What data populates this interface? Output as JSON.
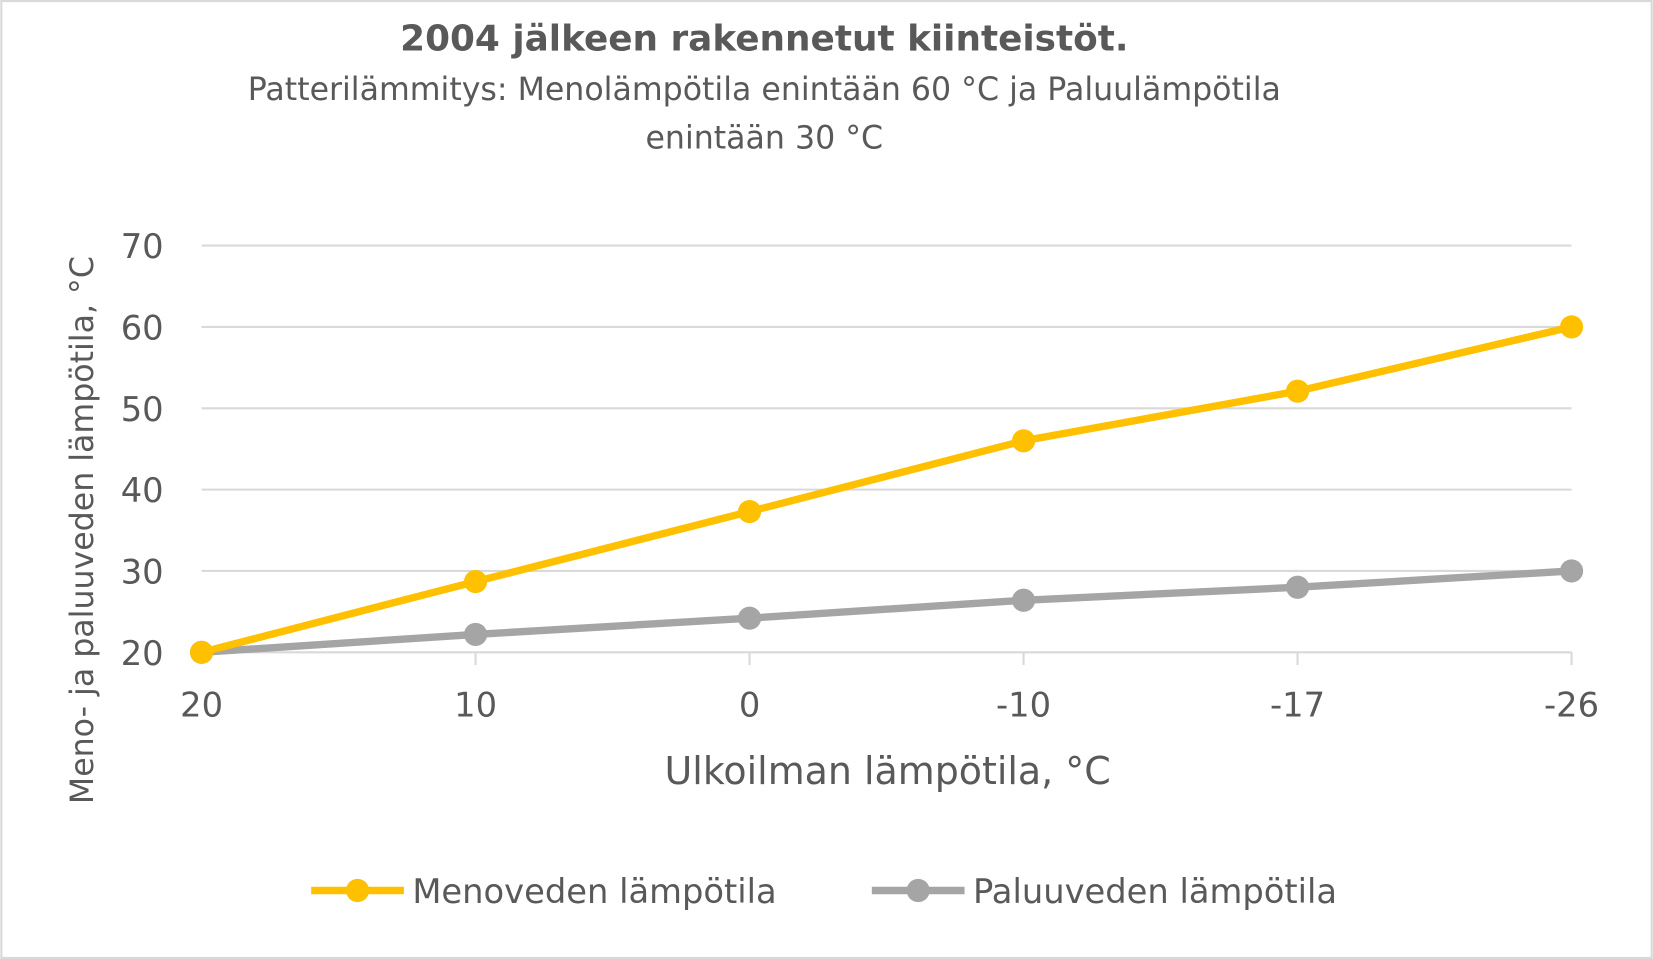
{
  "chart_data": {
    "type": "line",
    "title": "2004 jälkeen rakennetut kiinteistöt.",
    "subtitle_lines": [
      "Patterilämmitys: Menolämpötila enintään 60 °C ja Paluulämpötila",
      "enintään 30 °C"
    ],
    "xlabel": "Ulkoilman lämpötila, °C",
    "ylabel": "Meno- ja paluuveden lämpötila, °C",
    "categories": [
      "20",
      "10",
      "0",
      "-10",
      "-17",
      "-26"
    ],
    "yticks": [
      "20",
      "30",
      "40",
      "50",
      "60",
      "70"
    ],
    "ylim": [
      20,
      70
    ],
    "grid": true,
    "legend_position": "bottom",
    "series": [
      {
        "name": "Menoveden lämpötila",
        "color": "#FFC000",
        "values": [
          20,
          28.7,
          37.3,
          46,
          52.1,
          60
        ]
      },
      {
        "name": "Paluuveden lämpötila",
        "color": "#A5A5A5",
        "values": [
          20,
          22.2,
          24.2,
          26.4,
          28,
          30
        ]
      }
    ]
  }
}
